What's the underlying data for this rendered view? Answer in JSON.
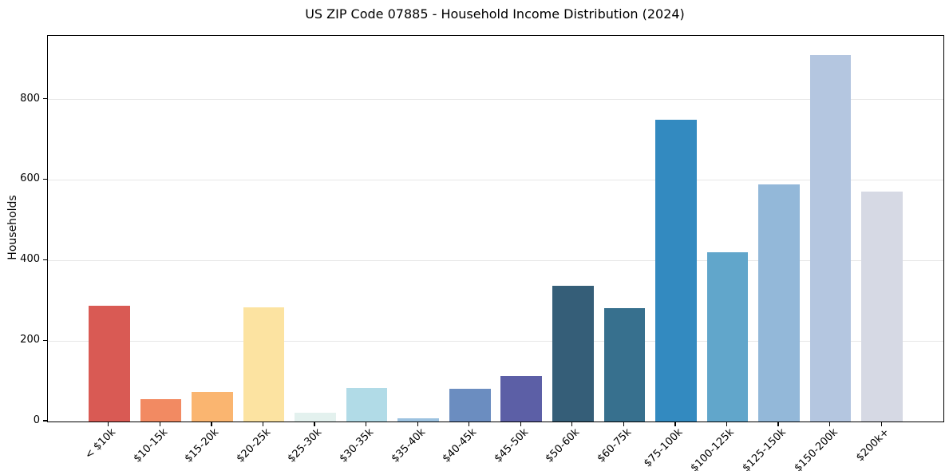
{
  "chart_data": {
    "type": "bar",
    "title": "US ZIP Code 07885 - Household Income Distribution (2024)",
    "xlabel": "",
    "ylabel": "Households",
    "categories": [
      "< $10k",
      "$10-15k",
      "$15-20k",
      "$20-25k",
      "$25-30k",
      "$30-35k",
      "$35-40k",
      "$40-45k",
      "$45-50k",
      "$50-60k",
      "$60-75k",
      "$75-100k",
      "$100-125k",
      "$125-150k",
      "$150-200k",
      "$200k+"
    ],
    "values": [
      287,
      56,
      73,
      284,
      21,
      84,
      7,
      82,
      114,
      337,
      282,
      749,
      420,
      590,
      910,
      572
    ],
    "bar_colors": [
      "#d95a54",
      "#f28a62",
      "#fab570",
      "#fce3a1",
      "#e3f1ee",
      "#b1dbe7",
      "#9cc2e0",
      "#6b8dc0",
      "#5c5fa6",
      "#355e78",
      "#37708e",
      "#338ac0",
      "#61a6cb",
      "#93b8d9",
      "#b4c6e0",
      "#d6d9e4"
    ],
    "yticks": [
      0,
      200,
      400,
      600,
      800
    ],
    "ylim": [
      0,
      958
    ],
    "grid": "horizontal-only",
    "grid_color": "#e7e7e7",
    "background": "#ffffff",
    "x_tick_rotation_deg": 45,
    "legend": "none"
  }
}
